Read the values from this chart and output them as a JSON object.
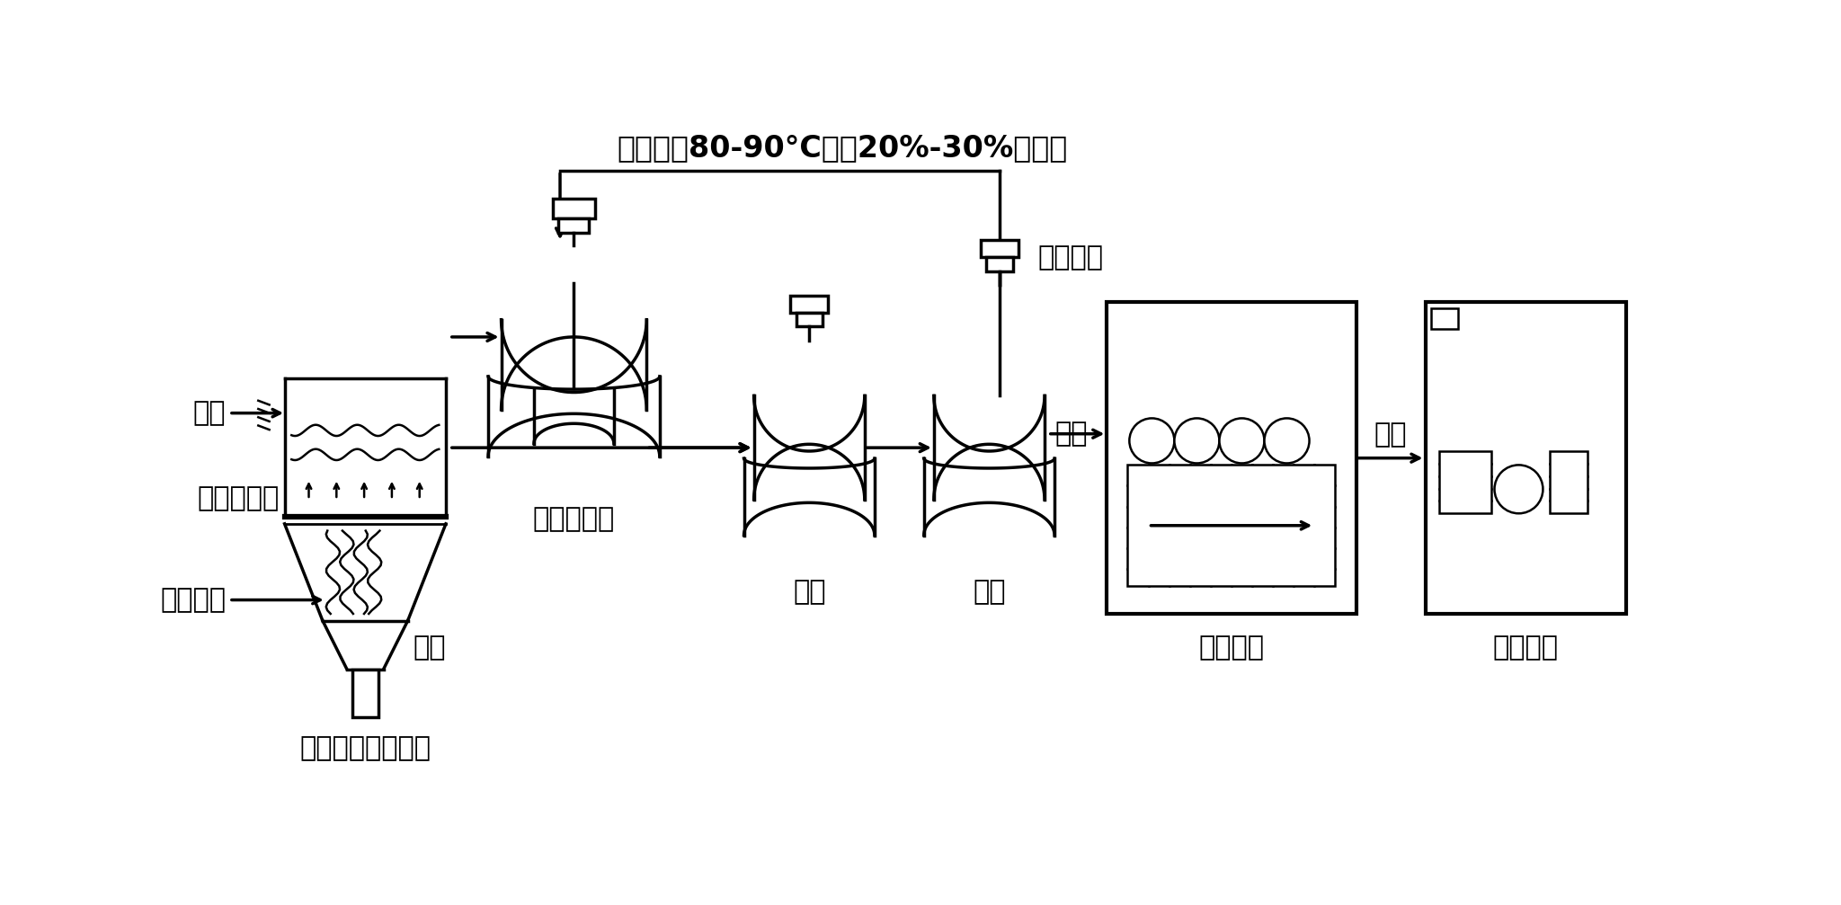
{
  "bg_color": "#ffffff",
  "line_color": "#000000",
  "title_text": "取蒸煮至80-90°C时，20%-30%的米汤",
  "labels": {
    "tiaozhi": "调质液预混",
    "jintiao": "进料",
    "qiti": "气体分布板",
    "liuhua": "流化气体",
    "shunshi": "瞬时高温流化处理",
    "chuliao": "出料",
    "jintao": "浸泡",
    "zhengzhu": "蒸煮",
    "wendu": "温度测定",
    "mifan1": "米饥",
    "wujun": "无菌包装",
    "mifan2": "米饥",
    "kuaisu": "快速降温"
  }
}
